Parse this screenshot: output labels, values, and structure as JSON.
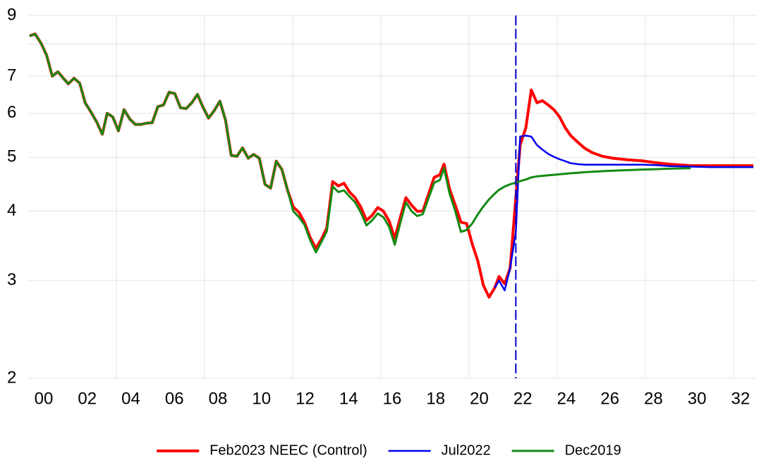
{
  "chart_data": {
    "type": "line",
    "log_y": true,
    "grid": true,
    "legend": "bottom",
    "xlim": [
      1999.3,
      2032.7
    ],
    "ylim": [
      2,
      9
    ],
    "yticks": [
      2,
      3,
      4,
      5,
      6,
      7,
      9
    ],
    "minor_yticks": [
      8
    ],
    "xgrid": [
      2003.34,
      2007.38,
      2011.43,
      2015.48,
      2019.53,
      2023.58,
      2027.63,
      2031.68
    ],
    "vline": {
      "value": 2021.68,
      "color": "#0000cc"
    },
    "xticks": [
      {
        "value": 2000,
        "label": "00"
      },
      {
        "value": 2002,
        "label": "02"
      },
      {
        "value": 2004,
        "label": "04"
      },
      {
        "value": 2006,
        "label": "06"
      },
      {
        "value": 2008,
        "label": "08"
      },
      {
        "value": 2010,
        "label": "10"
      },
      {
        "value": 2012,
        "label": "12"
      },
      {
        "value": 2014,
        "label": "14"
      },
      {
        "value": 2016,
        "label": "16"
      },
      {
        "value": 2018,
        "label": "18"
      },
      {
        "value": 2020,
        "label": "20"
      },
      {
        "value": 2022,
        "label": "22"
      },
      {
        "value": 2024,
        "label": "24"
      },
      {
        "value": 2026,
        "label": "26"
      },
      {
        "value": 2028,
        "label": "28"
      },
      {
        "value": 2030,
        "label": "30"
      },
      {
        "value": 2032,
        "label": "32"
      }
    ],
    "x": [
      1999.35,
      1999.6,
      1999.87,
      2000.13,
      2000.39,
      2000.65,
      2000.9,
      2001.13,
      2001.39,
      2001.65,
      2001.9,
      2002.17,
      2002.43,
      2002.69,
      2002.91,
      2003.17,
      2003.43,
      2003.69,
      2003.95,
      2004.2,
      2004.47,
      2004.72,
      2004.98,
      2005.24,
      2005.5,
      2005.76,
      2006.02,
      2006.28,
      2006.54,
      2006.8,
      2007.06,
      2007.3,
      2007.57,
      2007.83,
      2008.09,
      2008.35,
      2008.61,
      2008.87,
      2009.13,
      2009.39,
      2009.64,
      2009.9,
      2010.16,
      2010.42,
      2010.68,
      2010.94,
      2011.2,
      2011.46,
      2011.72,
      2011.97,
      2012.23,
      2012.5,
      2012.75,
      2013.0,
      2013.27,
      2013.53,
      2013.79,
      2014.04,
      2014.3,
      2014.56,
      2014.82,
      2015.08,
      2015.34,
      2015.6,
      2015.86,
      2016.12,
      2016.37,
      2016.63,
      2016.89,
      2017.15,
      2017.41,
      2017.67,
      2017.93,
      2018.19,
      2018.38,
      2018.64,
      2018.9,
      2019.16,
      2019.42,
      2019.68,
      2019.94,
      2020.19,
      2020.45,
      2020.71,
      2020.91,
      2021.17,
      2021.42,
      2021.68,
      2021.88,
      2022.14,
      2022.39,
      2022.65,
      2022.91,
      2023.17,
      2023.43,
      2023.69,
      2023.95,
      2024.2,
      2024.53,
      2024.85,
      2025.18,
      2025.66,
      2026.15,
      2026.8,
      2027.44,
      2028.09,
      2028.74,
      2029.71,
      2030.68,
      2031.65,
      2032.59
    ],
    "series": [
      {
        "name": "Feb2023 NEEC (Control)",
        "color": "#ff0000",
        "width": 4,
        "values": [
          8.27,
          8.34,
          8.03,
          7.64,
          7.0,
          7.13,
          6.94,
          6.78,
          6.94,
          6.8,
          6.27,
          6.03,
          5.79,
          5.5,
          6.0,
          5.91,
          5.58,
          6.09,
          5.86,
          5.73,
          5.73,
          5.76,
          5.77,
          6.17,
          6.21,
          6.55,
          6.51,
          6.14,
          6.12,
          6.27,
          6.49,
          6.17,
          5.88,
          6.07,
          6.31,
          5.83,
          5.04,
          5.02,
          5.2,
          4.98,
          5.06,
          4.98,
          4.47,
          4.4,
          4.92,
          4.75,
          4.36,
          4.07,
          3.98,
          3.82,
          3.59,
          3.43,
          3.56,
          3.73,
          4.52,
          4.44,
          4.49,
          4.33,
          4.23,
          4.07,
          3.85,
          3.93,
          4.06,
          4.0,
          3.84,
          3.57,
          3.89,
          4.23,
          4.1,
          4.0,
          4.0,
          4.29,
          4.6,
          4.65,
          4.86,
          4.38,
          4.1,
          3.82,
          3.8,
          3.49,
          3.25,
          2.94,
          2.8,
          2.91,
          3.05,
          2.96,
          3.16,
          4.23,
          5.26,
          5.65,
          6.61,
          6.27,
          6.32,
          6.21,
          6.09,
          5.91,
          5.65,
          5.47,
          5.32,
          5.19,
          5.1,
          5.02,
          4.98,
          4.95,
          4.93,
          4.89,
          4.86,
          4.83,
          4.83,
          4.83,
          4.83
        ]
      },
      {
        "name": "Jul2022",
        "color": "#0000ee",
        "width": 2.5,
        "values": [
          null,
          null,
          null,
          null,
          null,
          null,
          null,
          null,
          null,
          null,
          null,
          null,
          null,
          null,
          null,
          null,
          null,
          null,
          null,
          null,
          null,
          null,
          null,
          null,
          null,
          null,
          null,
          null,
          null,
          null,
          null,
          null,
          null,
          null,
          null,
          null,
          null,
          null,
          null,
          null,
          null,
          null,
          null,
          null,
          null,
          null,
          null,
          null,
          null,
          null,
          null,
          null,
          null,
          null,
          null,
          null,
          null,
          null,
          null,
          null,
          null,
          null,
          null,
          null,
          null,
          null,
          null,
          null,
          null,
          null,
          null,
          null,
          null,
          null,
          null,
          null,
          null,
          null,
          null,
          null,
          null,
          null,
          null,
          2.91,
          3.0,
          2.88,
          3.16,
          3.67,
          5.45,
          5.47,
          5.45,
          5.26,
          5.16,
          5.07,
          5.01,
          4.96,
          4.92,
          4.88,
          4.86,
          4.85,
          4.85,
          4.85,
          4.85,
          4.85,
          4.85,
          4.84,
          4.82,
          4.81,
          4.8,
          4.8,
          4.8
        ]
      },
      {
        "name": "Dec2019",
        "color": "#138a13",
        "width": 3,
        "values": [
          8.27,
          8.34,
          8.03,
          7.64,
          7.0,
          7.13,
          6.94,
          6.78,
          6.94,
          6.8,
          6.27,
          6.03,
          5.79,
          5.5,
          6.0,
          5.91,
          5.58,
          6.09,
          5.86,
          5.73,
          5.73,
          5.76,
          5.77,
          6.17,
          6.21,
          6.55,
          6.51,
          6.14,
          6.12,
          6.27,
          6.49,
          6.17,
          5.88,
          6.07,
          6.31,
          5.83,
          5.04,
          5.02,
          5.2,
          4.98,
          5.06,
          4.98,
          4.47,
          4.4,
          4.92,
          4.75,
          4.36,
          4.0,
          3.9,
          3.78,
          3.55,
          3.37,
          3.52,
          3.68,
          4.43,
          4.33,
          4.36,
          4.25,
          4.15,
          3.98,
          3.77,
          3.85,
          3.96,
          3.9,
          3.75,
          3.48,
          3.8,
          4.15,
          4.0,
          3.92,
          3.95,
          4.22,
          4.5,
          4.55,
          4.78,
          4.3,
          4.0,
          3.67,
          3.7,
          3.8,
          3.95,
          4.08,
          4.2,
          4.3,
          4.37,
          4.43,
          4.47,
          4.5,
          4.53,
          4.56,
          4.6,
          4.62,
          4.63,
          4.64,
          4.65,
          4.66,
          4.67,
          4.68,
          4.69,
          4.7,
          4.71,
          4.72,
          4.73,
          4.74,
          4.75,
          4.76,
          4.77,
          4.78,
          null,
          null,
          null
        ]
      }
    ]
  }
}
